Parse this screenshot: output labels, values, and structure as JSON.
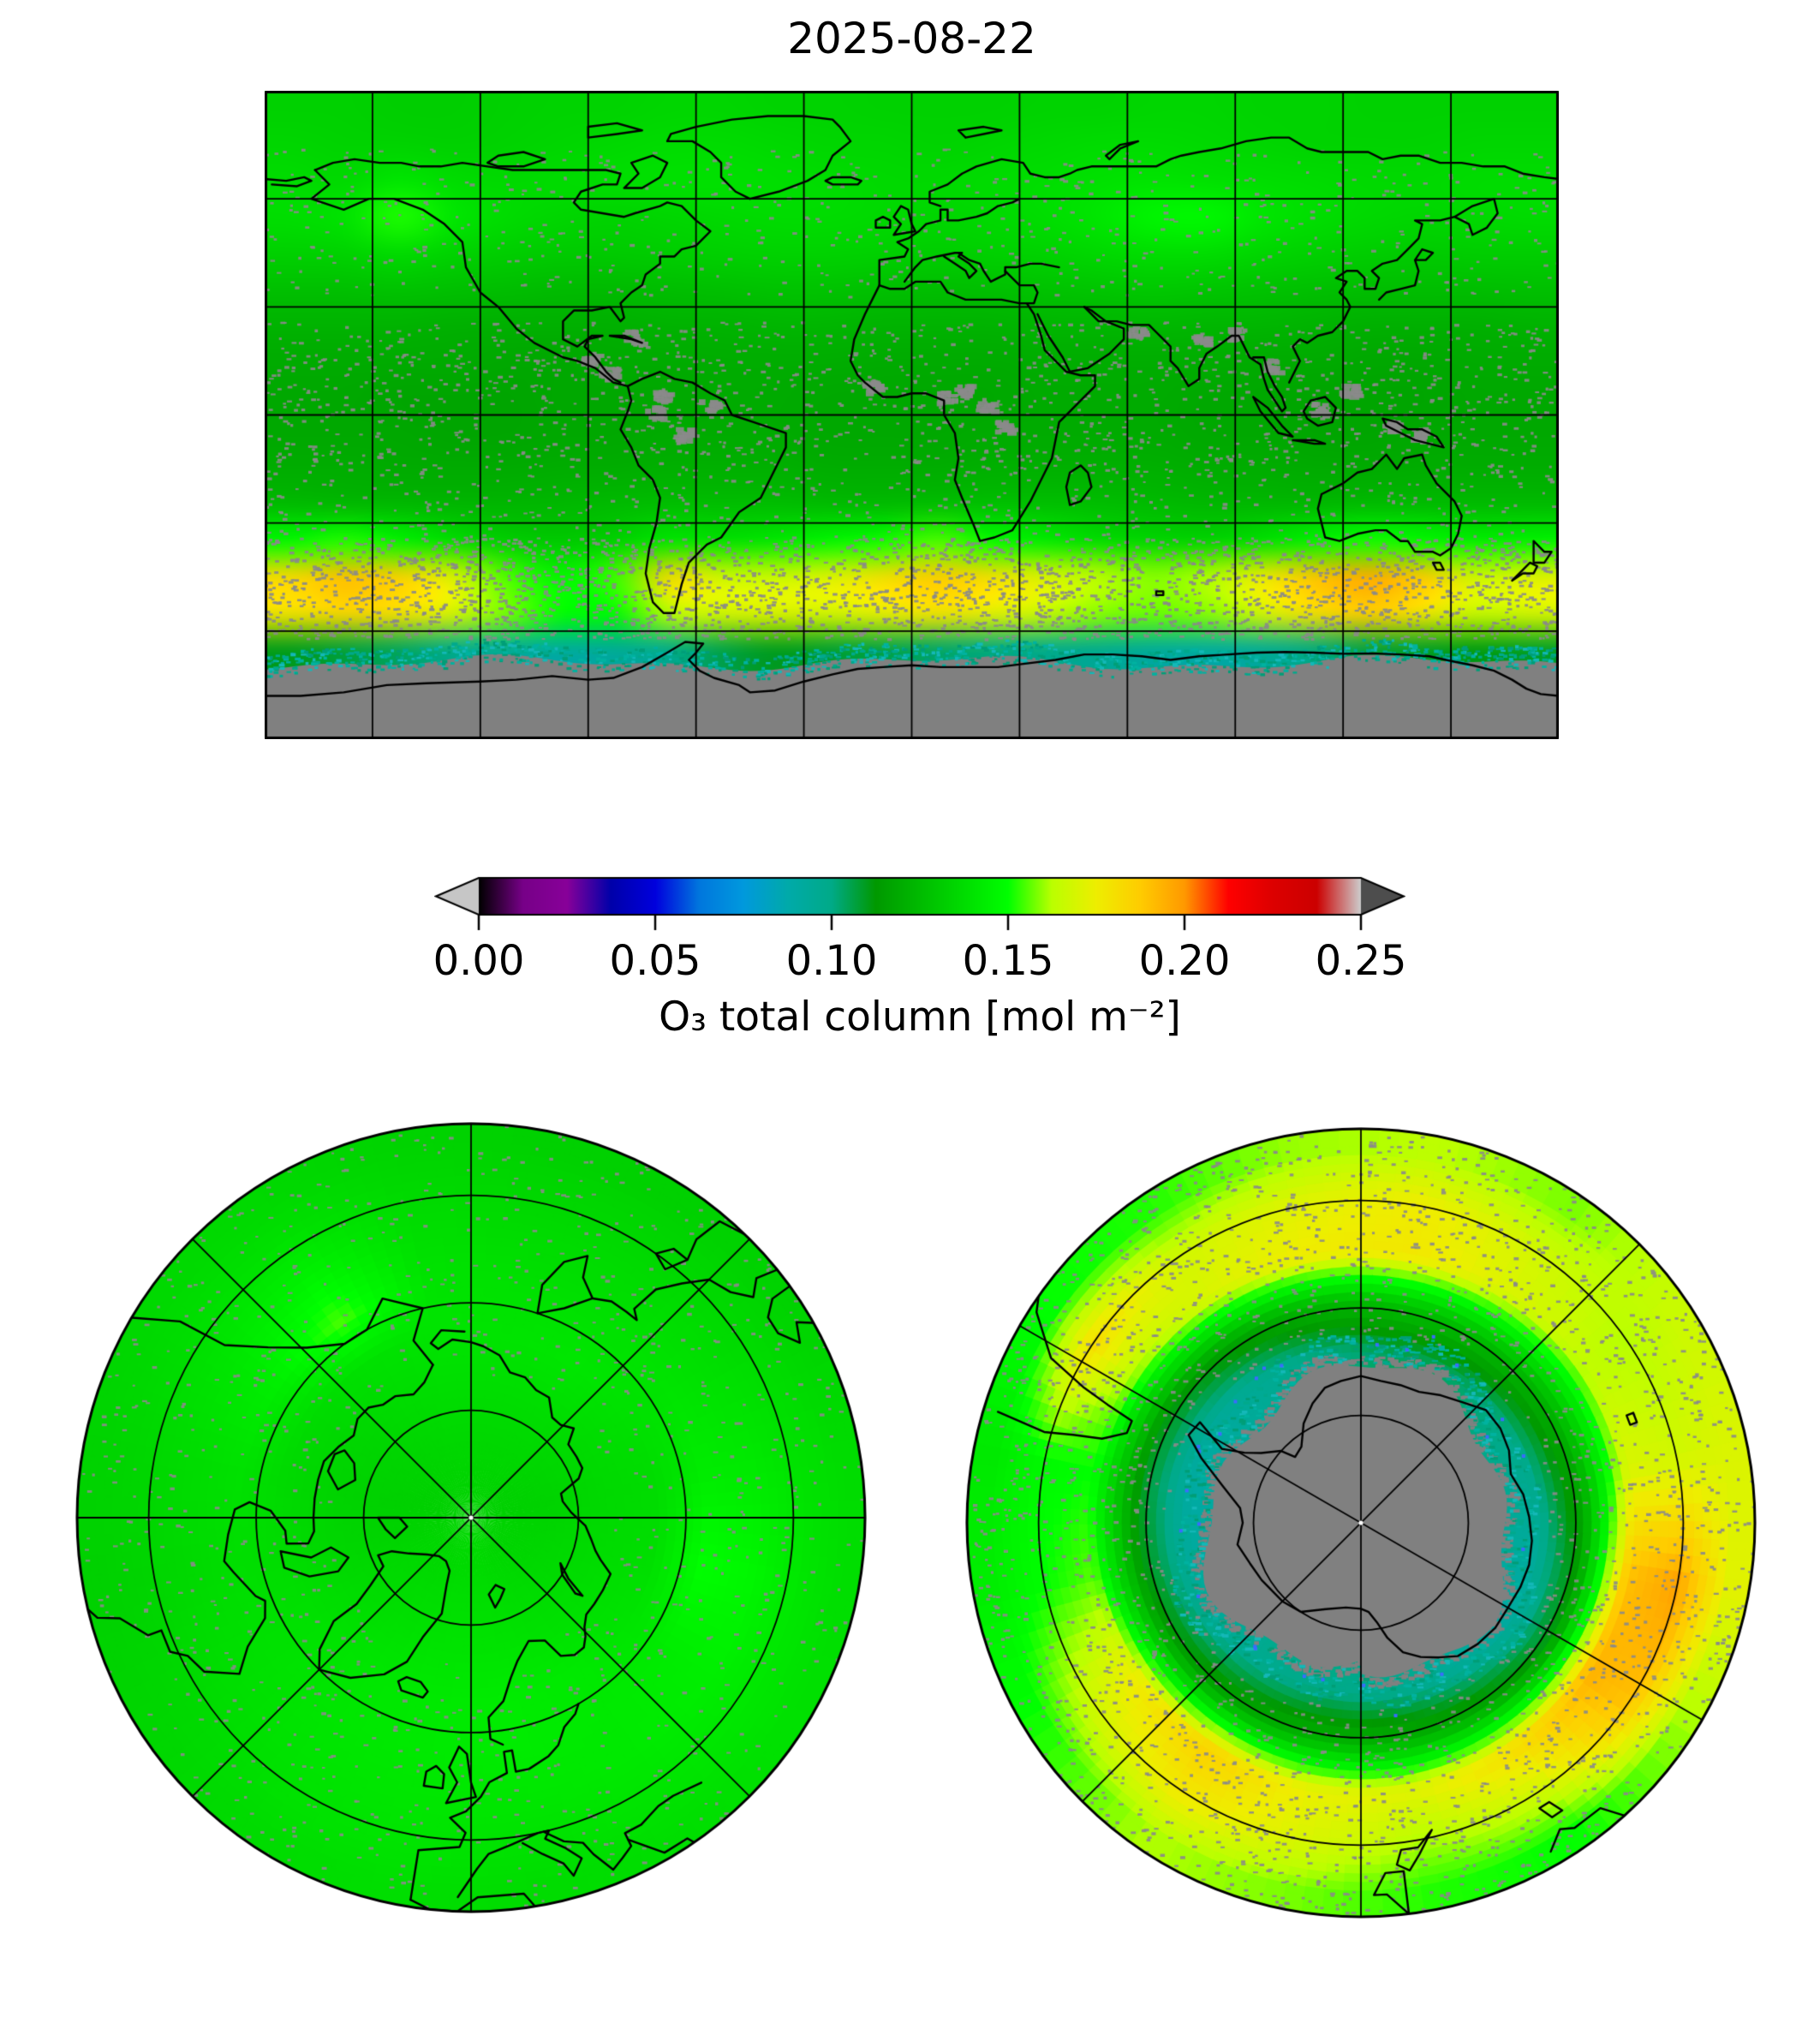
{
  "title": "2025-08-22",
  "colorbar": {
    "label": "O₃ total column [mol m⁻²]",
    "ticks": [
      "0.00",
      "0.05",
      "0.10",
      "0.15",
      "0.20",
      "0.25"
    ],
    "min": 0,
    "max": 0.25,
    "under_arrow_color": "#c6c6c6",
    "over_arrow_color": "#4d4d4d",
    "stops": [
      [
        0.0,
        "#000000"
      ],
      [
        0.05,
        "#770088"
      ],
      [
        0.1,
        "#880099"
      ],
      [
        0.15,
        "#0000aa"
      ],
      [
        0.2,
        "#0000dd"
      ],
      [
        0.25,
        "#0077dd"
      ],
      [
        0.3,
        "#0099dd"
      ],
      [
        0.35,
        "#00aaaa"
      ],
      [
        0.4,
        "#00aa88"
      ],
      [
        0.45,
        "#009900"
      ],
      [
        0.5,
        "#00bb00"
      ],
      [
        0.55,
        "#00dd00"
      ],
      [
        0.6,
        "#00ff00"
      ],
      [
        0.65,
        "#bbff00"
      ],
      [
        0.7,
        "#eeee00"
      ],
      [
        0.75,
        "#ffcc00"
      ],
      [
        0.8,
        "#ff9900"
      ],
      [
        0.85,
        "#ff0000"
      ],
      [
        0.9,
        "#dd0000"
      ],
      [
        0.95,
        "#cc0000"
      ],
      [
        1.0,
        "#cccccc"
      ]
    ]
  },
  "map_style": {
    "missing_color": "#808080",
    "coastline_color": "#000000",
    "gridline_color": "#000000",
    "border_color": "#000000",
    "background": "#ffffff",
    "pole_dot_color": "#ffffff",
    "speckle_color": "#8a8a8a",
    "ice_edge_colors": [
      "#00a98c",
      "#00b2a0",
      "#009e77",
      "#14b8b8"
    ]
  },
  "chart_data": {
    "type": "heatmap",
    "title": "2025-08-22",
    "variable": "O3 total column",
    "units": "mol m⁻²",
    "colormap": "nipy_spectral-like, under=light gray arrow, over=dark gray arrow",
    "colorbar_range": [
      0,
      0.25
    ],
    "colorbar_ticks": [
      0.0,
      0.05,
      0.1,
      0.15,
      0.2,
      0.25
    ],
    "panels": [
      {
        "name": "global",
        "projection": "equirectangular",
        "lon_min": -180,
        "lon_max": 180,
        "lat_min": -90,
        "lat_max": 90,
        "gridline_spacing_deg": 30,
        "lon_centers": [
          -172.5,
          -157.5,
          -142.5,
          -127.5,
          -112.5,
          -97.5,
          -82.5,
          -67.5,
          -52.5,
          -37.5,
          -22.5,
          -7.5,
          7.5,
          22.5,
          37.5,
          52.5,
          67.5,
          82.5,
          97.5,
          112.5,
          127.5,
          142.5,
          157.5,
          172.5
        ],
        "lat_centers": [
          85,
          75,
          65,
          55,
          45,
          35,
          25,
          15,
          5,
          -5,
          -15,
          -25,
          -35,
          -45,
          -55,
          -65,
          -75,
          -85
        ],
        "values": [
          [
            0.133,
            0.133,
            0.132,
            0.132,
            0.133,
            0.134,
            0.134,
            0.135,
            0.135,
            0.134,
            0.134,
            0.133,
            0.133,
            0.133,
            0.134,
            0.134,
            0.135,
            0.135,
            0.134,
            0.134,
            0.133,
            0.133,
            0.133,
            0.133
          ],
          [
            0.135,
            0.134,
            0.134,
            0.133,
            0.134,
            0.135,
            0.136,
            0.137,
            0.137,
            0.136,
            0.135,
            0.135,
            0.134,
            0.135,
            0.136,
            0.137,
            0.137,
            0.136,
            0.135,
            0.134,
            0.134,
            0.134,
            0.135,
            0.135
          ],
          [
            0.137,
            0.136,
            0.141,
            0.137,
            0.136,
            0.137,
            0.138,
            0.139,
            0.139,
            0.138,
            0.137,
            0.136,
            0.136,
            0.137,
            0.138,
            0.139,
            0.14,
            0.139,
            0.138,
            0.137,
            0.136,
            0.136,
            0.137,
            0.137
          ],
          [
            0.138,
            0.14,
            0.152,
            0.141,
            0.137,
            0.135,
            0.134,
            0.135,
            0.136,
            0.137,
            0.137,
            0.136,
            0.135,
            0.136,
            0.138,
            0.141,
            0.147,
            0.148,
            0.141,
            0.138,
            0.136,
            0.135,
            0.136,
            0.137
          ],
          [
            0.133,
            0.134,
            0.137,
            0.134,
            0.132,
            0.131,
            0.131,
            0.132,
            0.133,
            0.134,
            0.134,
            0.133,
            0.132,
            0.133,
            0.134,
            0.136,
            0.138,
            0.138,
            0.135,
            0.133,
            0.132,
            0.131,
            0.132,
            0.132
          ],
          [
            0.127,
            0.127,
            0.128,
            0.127,
            0.126,
            0.125,
            0.125,
            0.126,
            0.127,
            0.128,
            0.128,
            0.127,
            0.126,
            0.127,
            0.128,
            0.129,
            0.13,
            0.129,
            0.128,
            0.127,
            0.126,
            0.126,
            0.126,
            0.127
          ],
          [
            0.122,
            0.122,
            0.122,
            0.121,
            0.121,
            0.121,
            0.121,
            0.122,
            0.122,
            0.123,
            0.123,
            0.122,
            0.122,
            0.122,
            0.123,
            0.123,
            0.124,
            0.123,
            0.123,
            0.122,
            0.121,
            0.121,
            0.121,
            0.122
          ],
          [
            0.119,
            0.119,
            0.119,
            0.119,
            0.118,
            0.118,
            0.119,
            0.119,
            0.12,
            0.12,
            0.12,
            0.119,
            0.119,
            0.119,
            0.12,
            0.12,
            0.12,
            0.12,
            0.119,
            0.119,
            0.118,
            0.118,
            0.119,
            0.119
          ],
          [
            0.118,
            0.118,
            0.117,
            0.117,
            0.117,
            0.118,
            0.118,
            0.118,
            0.119,
            0.119,
            0.118,
            0.118,
            0.118,
            0.118,
            0.119,
            0.119,
            0.119,
            0.118,
            0.118,
            0.117,
            0.117,
            0.117,
            0.118,
            0.118
          ],
          [
            0.118,
            0.118,
            0.118,
            0.117,
            0.117,
            0.118,
            0.118,
            0.119,
            0.119,
            0.119,
            0.118,
            0.118,
            0.118,
            0.119,
            0.119,
            0.119,
            0.119,
            0.118,
            0.118,
            0.117,
            0.117,
            0.118,
            0.118,
            0.118
          ],
          [
            0.12,
            0.12,
            0.119,
            0.119,
            0.119,
            0.12,
            0.12,
            0.121,
            0.121,
            0.121,
            0.12,
            0.12,
            0.12,
            0.121,
            0.121,
            0.121,
            0.121,
            0.12,
            0.12,
            0.119,
            0.119,
            0.12,
            0.12,
            0.12
          ],
          [
            0.125,
            0.124,
            0.124,
            0.123,
            0.123,
            0.124,
            0.125,
            0.126,
            0.126,
            0.126,
            0.125,
            0.125,
            0.126,
            0.127,
            0.127,
            0.126,
            0.125,
            0.124,
            0.124,
            0.124,
            0.125,
            0.125,
            0.125,
            0.125
          ],
          [
            0.148,
            0.152,
            0.146,
            0.138,
            0.132,
            0.13,
            0.133,
            0.141,
            0.139,
            0.142,
            0.147,
            0.151,
            0.155,
            0.149,
            0.143,
            0.137,
            0.135,
            0.134,
            0.139,
            0.146,
            0.151,
            0.148,
            0.144,
            0.146
          ],
          [
            0.183,
            0.191,
            0.186,
            0.172,
            0.155,
            0.147,
            0.154,
            0.183,
            0.168,
            0.167,
            0.172,
            0.181,
            0.188,
            0.181,
            0.171,
            0.163,
            0.159,
            0.162,
            0.176,
            0.19,
            0.196,
            0.188,
            0.168,
            0.172
          ],
          [
            0.179,
            0.184,
            0.18,
            0.17,
            0.158,
            0.15,
            0.149,
            0.163,
            0.169,
            0.171,
            0.169,
            0.174,
            0.179,
            0.173,
            0.166,
            0.159,
            0.157,
            0.159,
            0.169,
            0.181,
            0.187,
            0.178,
            0.166,
            0.169
          ],
          [
            0.11,
            0.107,
            0.104,
            0.099,
            0.094,
            0.091,
            0.094,
            0.099,
            0.106,
            0.11,
            0.108,
            0.106,
            0.103,
            0.101,
            0.099,
            0.097,
            0.093,
            0.091,
            0.095,
            0.101,
            0.107,
            0.109,
            0.111,
            0.109
          ],
          [
            null,
            null,
            null,
            null,
            null,
            null,
            null,
            null,
            null,
            null,
            null,
            null,
            null,
            null,
            null,
            null,
            null,
            null,
            null,
            null,
            null,
            null,
            null,
            null
          ],
          [
            null,
            null,
            null,
            null,
            null,
            null,
            null,
            null,
            null,
            null,
            null,
            null,
            null,
            null,
            null,
            null,
            null,
            null,
            null,
            null,
            null,
            null,
            null,
            null
          ]
        ]
      },
      {
        "name": "north_polar",
        "projection": "north polar azimuthal",
        "boundary_lat": 35,
        "gridline_circle_lats": [
          75,
          60,
          45
        ],
        "spoke_angles_deg": [
          0,
          45,
          90,
          135,
          180,
          225,
          270,
          315
        ],
        "sector_lon_centers": [
          -168.75,
          -146.25,
          -123.75,
          -101.25,
          -78.75,
          -56.25,
          -33.75,
          -11.25,
          11.25,
          33.75,
          56.25,
          78.75,
          101.25,
          123.75,
          146.25,
          168.75
        ],
        "ring_lat_centers": [
          85,
          78,
          71,
          64,
          57,
          50,
          43,
          37.5
        ],
        "values": [
          [
            0.134,
            0.134,
            0.133,
            0.133,
            0.134,
            0.135,
            0.135,
            0.136,
            0.136,
            0.135,
            0.134,
            0.134,
            0.133,
            0.133,
            0.134,
            0.134
          ],
          [
            0.136,
            0.135,
            0.134,
            0.133,
            0.134,
            0.136,
            0.137,
            0.138,
            0.138,
            0.137,
            0.136,
            0.135,
            0.134,
            0.135,
            0.136,
            0.136
          ],
          [
            0.138,
            0.137,
            0.135,
            0.134,
            0.135,
            0.137,
            0.139,
            0.14,
            0.14,
            0.139,
            0.138,
            0.137,
            0.136,
            0.137,
            0.138,
            0.138
          ],
          [
            0.14,
            0.139,
            0.137,
            0.136,
            0.137,
            0.139,
            0.141,
            0.142,
            0.143,
            0.142,
            0.14,
            0.138,
            0.137,
            0.139,
            0.141,
            0.14
          ],
          [
            0.14,
            0.155,
            0.144,
            0.139,
            0.138,
            0.139,
            0.141,
            0.142,
            0.143,
            0.142,
            0.143,
            0.15,
            0.143,
            0.14,
            0.139,
            0.139
          ],
          [
            0.138,
            0.146,
            0.141,
            0.137,
            0.136,
            0.138,
            0.14,
            0.141,
            0.141,
            0.142,
            0.144,
            0.147,
            0.142,
            0.138,
            0.137,
            0.137
          ],
          [
            0.136,
            0.139,
            0.138,
            0.135,
            0.134,
            0.136,
            0.139,
            0.14,
            0.139,
            0.14,
            0.141,
            0.141,
            0.139,
            0.136,
            0.135,
            0.135
          ],
          [
            0.134,
            0.136,
            0.136,
            0.134,
            0.133,
            0.135,
            0.137,
            0.138,
            0.137,
            0.138,
            0.139,
            0.138,
            0.137,
            0.134,
            0.133,
            0.133
          ]
        ]
      },
      {
        "name": "south_polar",
        "projection": "south polar azimuthal",
        "boundary_lat": -35,
        "gridline_circle_lats": [
          -75,
          -60,
          -45
        ],
        "spoke_angles_deg": [
          0,
          45,
          120,
          180,
          225,
          300
        ],
        "sector_lon_centers": [
          -168.75,
          -146.25,
          -123.75,
          -101.25,
          -78.75,
          -56.25,
          -33.75,
          -11.25,
          11.25,
          33.75,
          56.25,
          78.75,
          101.25,
          123.75,
          146.25,
          168.75
        ],
        "ring_lat_centers": [
          -87,
          -80,
          -73,
          -66,
          -59,
          -52,
          -45,
          -38
        ],
        "values": [
          [
            null,
            null,
            null,
            null,
            null,
            null,
            null,
            null,
            null,
            null,
            null,
            null,
            null,
            null,
            null,
            null
          ],
          [
            null,
            null,
            null,
            null,
            null,
            null,
            null,
            null,
            null,
            null,
            null,
            null,
            null,
            null,
            null,
            null
          ],
          [
            null,
            null,
            null,
            null,
            null,
            null,
            null,
            null,
            null,
            null,
            null,
            null,
            null,
            null,
            null,
            null
          ],
          [
            0.1,
            0.098,
            0.094,
            0.092,
            0.09,
            0.092,
            0.096,
            0.1,
            0.104,
            0.103,
            0.1,
            0.096,
            0.092,
            0.09,
            0.094,
            0.098
          ],
          [
            0.124,
            0.12,
            0.116,
            0.112,
            0.11,
            0.113,
            0.118,
            0.124,
            0.128,
            0.127,
            0.124,
            0.12,
            0.115,
            0.112,
            0.118,
            0.122
          ],
          [
            0.174,
            0.186,
            0.176,
            0.156,
            0.15,
            0.162,
            0.17,
            0.176,
            0.178,
            0.17,
            0.164,
            0.17,
            0.19,
            0.194,
            0.182,
            0.172
          ],
          [
            0.17,
            0.178,
            0.168,
            0.15,
            0.148,
            0.182,
            0.168,
            0.172,
            0.176,
            0.168,
            0.162,
            0.168,
            0.198,
            0.19,
            0.168,
            0.162
          ],
          [
            0.158,
            0.162,
            0.152,
            0.144,
            0.142,
            0.15,
            0.152,
            0.16,
            0.163,
            0.158,
            0.166,
            0.17,
            0.172,
            0.16,
            0.15,
            0.152
          ]
        ]
      }
    ]
  }
}
